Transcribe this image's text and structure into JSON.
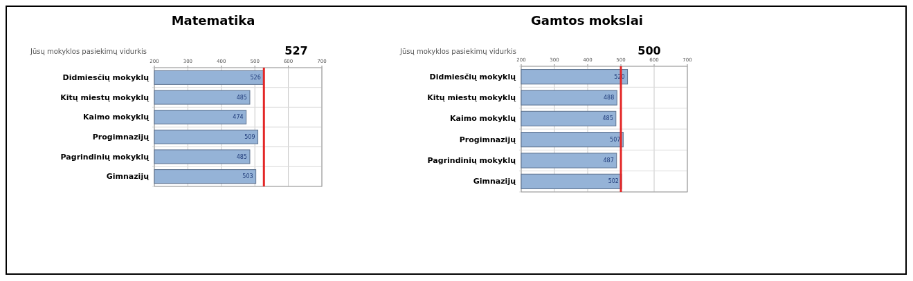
{
  "chart_data": [
    {
      "type": "bar",
      "orientation": "horizontal",
      "title": "Matematika",
      "annotations": [
        "Jūsų mokyklos pasiekimų  vidurkis"
      ],
      "categories": [
        "Didmiesčių mokyklų",
        "Kitų miestų mokyklų",
        "Kaimo mokyklų",
        "Progimnazijų",
        "Pagrindinių mokyklų",
        "Gimnazijų"
      ],
      "values": [
        526,
        485,
        474,
        509,
        485,
        503
      ],
      "color": "#95b3d7",
      "xlim": [
        200,
        700
      ],
      "xticks": [
        200,
        300,
        400,
        500,
        600,
        700
      ],
      "grid": "x",
      "data_labels": true,
      "ref_lines": [
        {
          "axis": "x",
          "value": 527,
          "label": "527",
          "color": "#e32626"
        }
      ]
    },
    {
      "type": "bar",
      "orientation": "horizontal",
      "title": "Gamtos mokslai",
      "annotations": [
        "Jūsų mokyklos pasiekimų  vidurkis"
      ],
      "categories": [
        "Didmiesčių mokyklų",
        "Kitų miestų mokyklų",
        "Kaimo mokyklų",
        "Progimnazijų",
        "Pagrindinių mokyklų",
        "Gimnazijų"
      ],
      "values": [
        520,
        488,
        485,
        507,
        487,
        502
      ],
      "color": "#95b3d7",
      "xlim": [
        200,
        700
      ],
      "xticks": [
        200,
        300,
        400,
        500,
        600,
        700
      ],
      "grid": "x",
      "data_labels": true,
      "ref_lines": [
        {
          "axis": "x",
          "value": 500,
          "label": "500",
          "color": "#e32626"
        }
      ]
    }
  ]
}
